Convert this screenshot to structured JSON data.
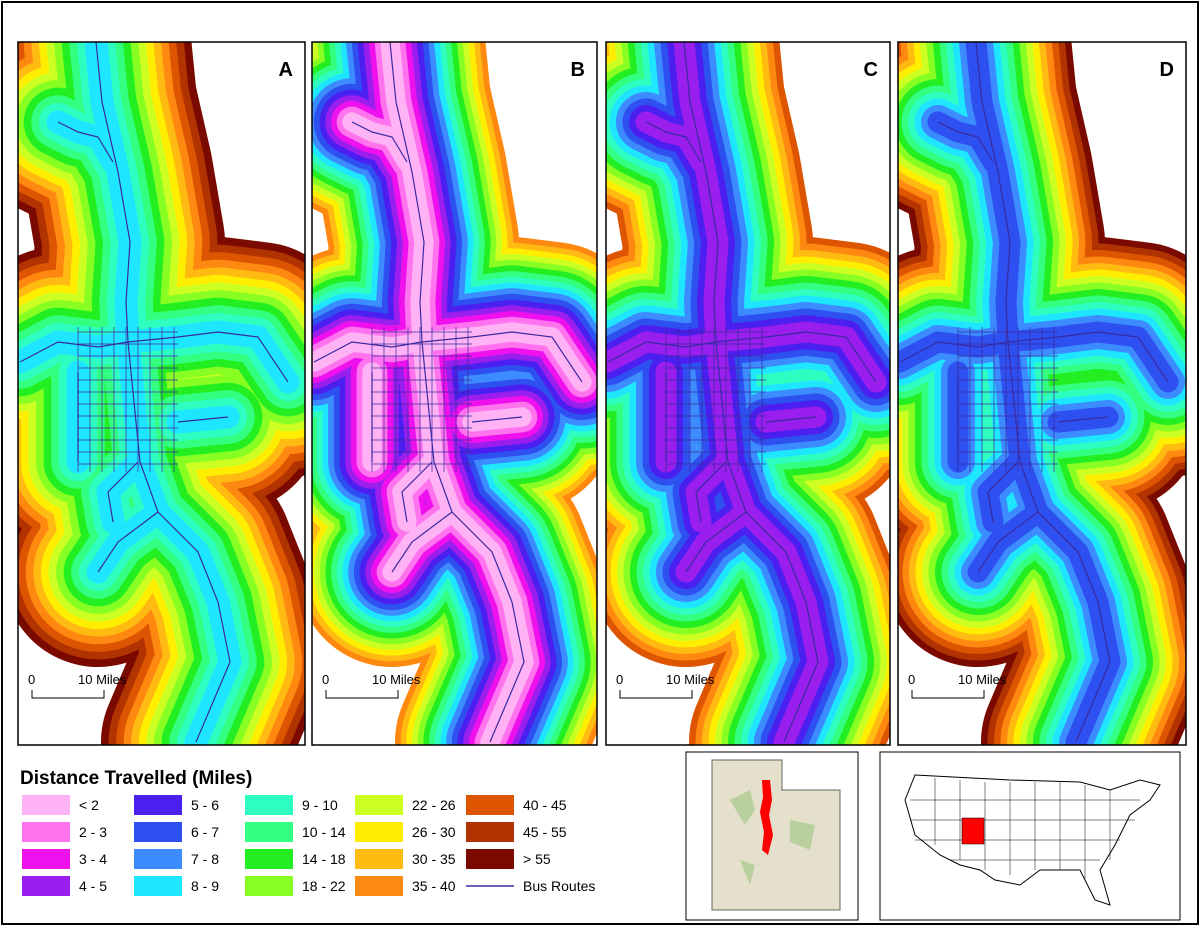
{
  "panels": [
    {
      "label": "A",
      "scale": {
        "start": "0",
        "end": "10 Miles"
      }
    },
    {
      "label": "B",
      "scale": {
        "start": "0",
        "end": "10 Miles"
      }
    },
    {
      "label": "C",
      "scale": {
        "start": "0",
        "end": "10 Miles"
      }
    },
    {
      "label": "D",
      "scale": {
        "start": "0",
        "end": "10 Miles"
      }
    }
  ],
  "legend": {
    "title": "Distance Travelled (Miles)",
    "items": [
      {
        "label": "< 2",
        "color": "#ffb3f5"
      },
      {
        "label": "2 - 3",
        "color": "#ff73ee"
      },
      {
        "label": "3 - 4",
        "color": "#ee11ee"
      },
      {
        "label": "4 - 5",
        "color": "#9a1fee"
      },
      {
        "label": "5 - 6",
        "color": "#4a1ff0"
      },
      {
        "label": "6 - 7",
        "color": "#2e50f0"
      },
      {
        "label": "7 - 8",
        "color": "#3c8cff"
      },
      {
        "label": "8 - 9",
        "color": "#1ee6ff"
      },
      {
        "label": "9 - 10",
        "color": "#2effc0"
      },
      {
        "label": "10 - 14",
        "color": "#33ff80"
      },
      {
        "label": "14 - 18",
        "color": "#22ee22"
      },
      {
        "label": "18 - 22",
        "color": "#88ff22"
      },
      {
        "label": "22 - 26",
        "color": "#ccff22"
      },
      {
        "label": "26 - 30",
        "color": "#ffee00"
      },
      {
        "label": "30 - 35",
        "color": "#ffbb11"
      },
      {
        "label": "35 - 40",
        "color": "#ff8811"
      },
      {
        "label": "40 - 45",
        "color": "#dd5500"
      },
      {
        "label": "45 - 55",
        "color": "#b03300"
      },
      {
        "label": "> 55",
        "color": "#7a0a00"
      }
    ],
    "routes": {
      "label": "Bus Routes",
      "color": "#3a2aa0"
    }
  }
}
